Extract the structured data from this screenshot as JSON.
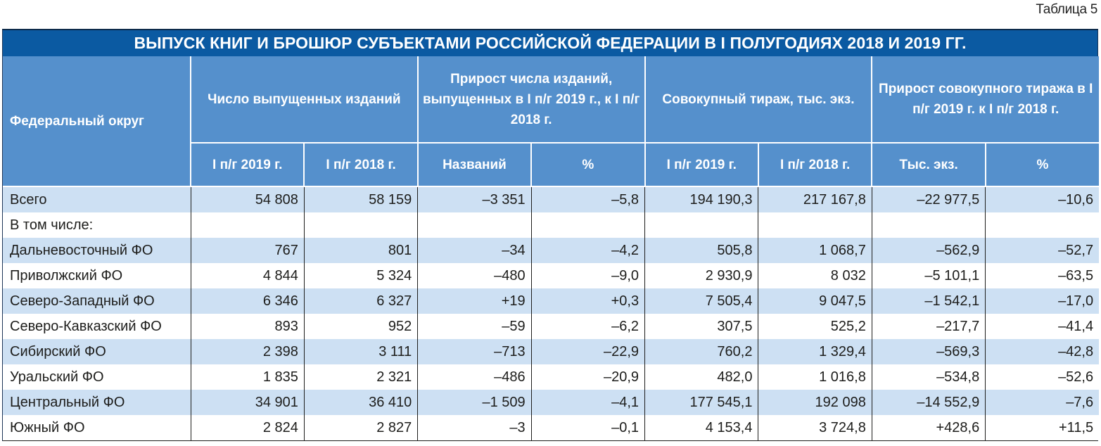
{
  "table_label": "Таблица 5",
  "title": "ВЫПУСК КНИГ И БРОШЮР СУБЪЕКТАМИ РОССИЙСКОЙ ФЕДЕРАЦИИ В I ПОЛУГОДИЯХ 2018 И 2019 ГГ.",
  "colors": {
    "title_bg": "#0b5aa2",
    "header_bg": "#5590cc",
    "band_bg": "#cde0f3",
    "text": "#1d1d1b"
  },
  "header": {
    "district": "Федеральный округ",
    "groups": [
      {
        "label": "Число выпущенных изданий",
        "sub": [
          "I п/г 2019 г.",
          "I п/г 2018 г."
        ]
      },
      {
        "label": "Прирост числа изданий, выпущенных в I п/г 2019 г., к I п/г 2018 г.",
        "sub": [
          "Названий",
          "%"
        ]
      },
      {
        "label": "Совокупный тираж, тыс. экз.",
        "sub": [
          "I п/г 2019 г.",
          "I п/г 2018 г."
        ]
      },
      {
        "label": "Прирост совокупного тиража в I п/г 2019 г. к I п/г 2018 г.",
        "sub": [
          "Тыс. экз.",
          "%"
        ]
      }
    ]
  },
  "rows": [
    {
      "name": "Всего",
      "band": true,
      "values": [
        "54 808",
        "58 159",
        "–3 351",
        "–5,8",
        "194 190,3",
        "217 167,8",
        "–22 977,5",
        "–10,6"
      ]
    },
    {
      "name": "В том числе:",
      "band": false,
      "values": [
        "",
        "",
        "",
        "",
        "",
        "",
        "",
        ""
      ]
    },
    {
      "name": "Дальневосточный ФО",
      "band": true,
      "values": [
        "767",
        "801",
        "–34",
        "–4,2",
        "505,8",
        "1 068,7",
        "–562,9",
        "–52,7"
      ]
    },
    {
      "name": "Приволжский ФО",
      "band": false,
      "values": [
        "4 844",
        "5 324",
        "–480",
        "–9,0",
        "2 930,9",
        "8 032",
        "–5 101,1",
        "–63,5"
      ]
    },
    {
      "name": "Северо-Западный ФО",
      "band": true,
      "values": [
        "6 346",
        "6 327",
        "+19",
        "+0,3",
        "7 505,4",
        "9 047,5",
        "–1 542,1",
        "–17,0"
      ]
    },
    {
      "name": "Северо-Кавказский ФО",
      "band": false,
      "values": [
        "893",
        "952",
        "–59",
        "–6,2",
        "307,5",
        "525,2",
        "–217,7",
        "–41,4"
      ]
    },
    {
      "name": "Сибирский ФО",
      "band": true,
      "values": [
        "2 398",
        "3 111",
        "–713",
        "–22,9",
        "760,2",
        "1 329,4",
        "–569,3",
        "–42,8"
      ]
    },
    {
      "name": "Уральский ФО",
      "band": false,
      "values": [
        "1 835",
        "2 321",
        "–486",
        "–20,9",
        "482,0",
        "1 016,8",
        "–534,8",
        "–52,6"
      ]
    },
    {
      "name": "Центральный ФО",
      "band": true,
      "values": [
        "34 901",
        "36 410",
        "–1 509",
        "–4,1",
        "177 545,1",
        "192 098",
        "–14 552,9",
        "–7,6"
      ]
    },
    {
      "name": "Южный ФО",
      "band": false,
      "values": [
        "2 824",
        "2 827",
        "–3",
        "–0,1",
        "4 153,4",
        "3 724,8",
        "+428,6",
        "+11,5"
      ]
    }
  ]
}
